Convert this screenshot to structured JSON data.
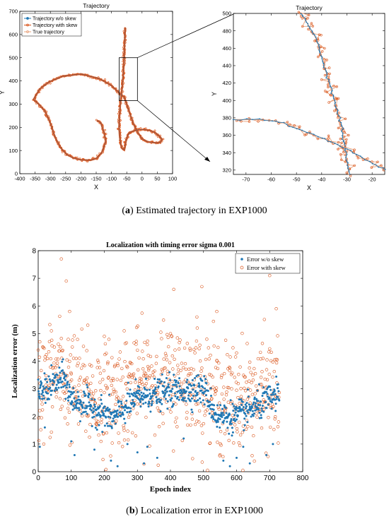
{
  "captions": {
    "a": {
      "label": "a",
      "text": " Estimated trajectory in EXP1000"
    },
    "b": {
      "label": "b",
      "text": " Localization error in EXP1000"
    }
  },
  "colors": {
    "blue": "#1f77b4",
    "orange": "#d95319",
    "orange_light": "#e8a07a",
    "grid": "#000000"
  },
  "chart_data": [
    {
      "type": "line",
      "title": "Trajectory",
      "xlabel": "X",
      "ylabel": "Y",
      "xlim": [
        -400,
        100
      ],
      "ylim": [
        0,
        700
      ],
      "xticks": [
        -400,
        -350,
        -300,
        -250,
        -200,
        -150,
        -100,
        -50,
        0,
        50,
        100
      ],
      "yticks": [
        0,
        100,
        200,
        300,
        400,
        500,
        600,
        700
      ],
      "legend": {
        "placement": "top-left",
        "entries": [
          "Trajectory w/o skew",
          "Trajectory with skew",
          "True trajectory"
        ]
      },
      "path": [
        [
          -55,
          630
        ],
        [
          -57,
          560
        ],
        [
          -59,
          480
        ],
        [
          -62,
          420
        ],
        [
          -66,
          360
        ],
        [
          -70,
          320
        ],
        [
          -72,
          280
        ],
        [
          -74,
          240
        ],
        [
          -75,
          200
        ],
        [
          -73,
          160
        ],
        [
          -70,
          130
        ],
        [
          -66,
          110
        ],
        [
          -58,
          102
        ],
        [
          -55,
          120
        ],
        [
          -52,
          145
        ],
        [
          -47,
          165
        ],
        [
          -40,
          178
        ],
        [
          -28,
          184
        ],
        [
          -12,
          190
        ],
        [
          8,
          190
        ],
        [
          28,
          186
        ],
        [
          45,
          175
        ],
        [
          58,
          160
        ],
        [
          66,
          148
        ],
        [
          60,
          135
        ],
        [
          45,
          133
        ],
        [
          20,
          137
        ],
        [
          0,
          150
        ],
        [
          -15,
          180
        ],
        [
          -28,
          215
        ],
        [
          -40,
          260
        ],
        [
          -50,
          300
        ],
        [
          -58,
          330
        ],
        [
          -72,
          345
        ],
        [
          -100,
          380
        ],
        [
          -140,
          410
        ],
        [
          -200,
          430
        ],
        [
          -260,
          420
        ],
        [
          -305,
          395
        ],
        [
          -335,
          365
        ],
        [
          -355,
          320
        ],
        [
          -338,
          300
        ],
        [
          -318,
          270
        ],
        [
          -305,
          235
        ],
        [
          -295,
          200
        ],
        [
          -288,
          170
        ],
        [
          -280,
          145
        ],
        [
          -265,
          110
        ],
        [
          -245,
          82
        ],
        [
          -225,
          68
        ],
        [
          -200,
          60
        ],
        [
          -170,
          58
        ],
        [
          -150,
          65
        ],
        [
          -132,
          90
        ],
        [
          -118,
          140
        ],
        [
          -125,
          180
        ],
        [
          -135,
          220
        ],
        [
          -148,
          230
        ]
      ],
      "zoom_box": {
        "xlim": [
          -75,
          -15
        ],
        "ylim": [
          315,
          500
        ]
      }
    },
    {
      "type": "line",
      "title": "Trajectory",
      "xlabel": "X",
      "ylabel": "Y",
      "xlim": [
        -75,
        -15
      ],
      "ylim": [
        315,
        500
      ],
      "xticks": [
        -70,
        -60,
        -50,
        -40,
        -30,
        -20
      ],
      "yticks": [
        320,
        340,
        360,
        380,
        400,
        420,
        440,
        460,
        480,
        500
      ],
      "segment_a": [
        [
          -48,
          500
        ],
        [
          -46,
          490
        ],
        [
          -44,
          480
        ],
        [
          -42,
          470
        ],
        [
          -41,
          460
        ],
        [
          -40,
          450
        ],
        [
          -39,
          440
        ],
        [
          -38,
          430
        ],
        [
          -37,
          420
        ],
        [
          -36,
          410
        ],
        [
          -35,
          400
        ],
        [
          -34,
          390
        ],
        [
          -33,
          380
        ],
        [
          -32,
          370
        ],
        [
          -31.5,
          360
        ],
        [
          -31,
          350
        ],
        [
          -30.5,
          340
        ],
        [
          -30,
          330
        ],
        [
          -29.5,
          320
        ],
        [
          -29,
          315
        ]
      ],
      "segment_b": [
        [
          -75,
          378
        ],
        [
          -70,
          378
        ],
        [
          -65,
          378
        ],
        [
          -60,
          377
        ],
        [
          -55,
          374
        ],
        [
          -50,
          368
        ],
        [
          -45,
          362
        ],
        [
          -40,
          357
        ],
        [
          -35,
          351
        ],
        [
          -30,
          344
        ],
        [
          -25,
          336
        ],
        [
          -20,
          328
        ],
        [
          -16,
          322
        ],
        [
          -15,
          320
        ]
      ]
    },
    {
      "type": "scatter",
      "title": "Localization with timing error sigma 0.001",
      "xlabel": "Epoch index",
      "ylabel": "Localization error (m)",
      "xlim": [
        0,
        800
      ],
      "ylim": [
        0,
        8
      ],
      "xticks": [
        0,
        100,
        200,
        300,
        400,
        500,
        600,
        700,
        800
      ],
      "yticks": [
        0,
        1,
        2,
        3,
        4,
        5,
        6,
        7,
        8
      ],
      "legend": {
        "placement": "top-right",
        "entries": [
          "Error w/o skew",
          "Error with skew"
        ]
      },
      "n_points": 730,
      "series": [
        {
          "name": "Error w/o skew",
          "marker": "filled-dot",
          "trend": [
            [
              0,
              2.8
            ],
            [
              50,
              3.2
            ],
            [
              80,
              3.4
            ],
            [
              100,
              2.6
            ],
            [
              150,
              2.4
            ],
            [
              200,
              2.1
            ],
            [
              230,
              1.9
            ],
            [
              260,
              2.3
            ],
            [
              300,
              2.7
            ],
            [
              400,
              2.9
            ],
            [
              500,
              3.0
            ],
            [
              540,
              2.0
            ],
            [
              600,
              2.0
            ],
            [
              650,
              2.3
            ],
            [
              700,
              2.6
            ],
            [
              730,
              2.8
            ]
          ],
          "spread": 0.45,
          "low_outliers": [
            [
              5,
              0.9
            ],
            [
              20,
              1.6
            ],
            [
              100,
              1.1
            ],
            [
              110,
              0.6
            ],
            [
              170,
              0.8
            ],
            [
              220,
              0.4
            ],
            [
              240,
              0.2
            ],
            [
              270,
              1.0
            ],
            [
              300,
              0.7
            ],
            [
              320,
              0.3
            ],
            [
              330,
              0.9
            ],
            [
              360,
              0.5
            ],
            [
              440,
              1.2
            ],
            [
              560,
              0.4
            ],
            [
              580,
              0.2
            ],
            [
              600,
              0.5
            ],
            [
              620,
              0.9
            ],
            [
              640,
              0.3
            ],
            [
              690,
              0.6
            ],
            [
              710,
              1.0
            ]
          ]
        },
        {
          "name": "Error with skew",
          "marker": "open-circle",
          "trend": [
            [
              0,
              3.0
            ],
            [
              60,
              3.6
            ],
            [
              100,
              3.1
            ],
            [
              200,
              2.6
            ],
            [
              260,
              3.0
            ],
            [
              350,
              3.3
            ],
            [
              450,
              3.3
            ],
            [
              520,
              3.0
            ],
            [
              560,
              2.6
            ],
            [
              650,
              2.7
            ],
            [
              730,
              3.0
            ]
          ],
          "spread": 1.3,
          "high_outliers": [
            [
              5,
              4.7
            ],
            [
              40,
              5.1
            ],
            [
              70,
              7.7
            ],
            [
              85,
              6.9
            ],
            [
              95,
              5.8
            ],
            [
              150,
              5.3
            ],
            [
              200,
              4.9
            ],
            [
              260,
              5.1
            ],
            [
              300,
              4.4
            ],
            [
              330,
              4.6
            ],
            [
              410,
              6.6
            ],
            [
              460,
              4.4
            ],
            [
              480,
              5.6
            ],
            [
              495,
              6.7
            ],
            [
              540,
              5.8
            ],
            [
              600,
              4.3
            ],
            [
              680,
              4.1
            ],
            [
              700,
              7.1
            ],
            [
              720,
              5.9
            ]
          ]
        }
      ]
    }
  ]
}
